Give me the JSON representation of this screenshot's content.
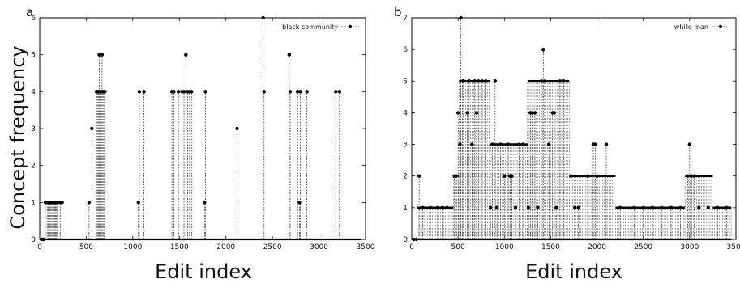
{
  "chart_data": [
    {
      "panel": "a",
      "type": "line",
      "style": "impulse-dots",
      "ylabel": "Concept frequency",
      "xlabel": "Edit index",
      "xlim": [
        0,
        3500
      ],
      "ylim": [
        0,
        6
      ],
      "xticks": [
        0,
        500,
        1000,
        1500,
        2000,
        2500,
        3000,
        3500
      ],
      "yticks": [
        0,
        1,
        2,
        3,
        4,
        5,
        6
      ],
      "legend": "top-right",
      "series": [
        {
          "name": "black community",
          "x": [
            20,
            40,
            60,
            80,
            90,
            100,
            110,
            120,
            130,
            140,
            150,
            160,
            170,
            180,
            190,
            220,
            240,
            530,
            560,
            610,
            620,
            630,
            640,
            650,
            660,
            670,
            680,
            690,
            700,
            1060,
            1070,
            1120,
            1420,
            1440,
            1490,
            1530,
            1550,
            1570,
            1590,
            1610,
            1630,
            1770,
            1780,
            2120,
            2400,
            2410,
            2680,
            2690,
            2770,
            2790,
            2800,
            2870,
            3180,
            3220
          ],
          "y": [
            0,
            0,
            1,
            1,
            1,
            1,
            1,
            1,
            1,
            1,
            1,
            1,
            1,
            1,
            1,
            1,
            1,
            1,
            3,
            4,
            4,
            4,
            5,
            4,
            4,
            5,
            4,
            4,
            4,
            1,
            4,
            4,
            4,
            4,
            4,
            4,
            4,
            5,
            4,
            4,
            4,
            1,
            4,
            3,
            6,
            4,
            5,
            4,
            4,
            1,
            4,
            4,
            4,
            4
          ]
        }
      ]
    },
    {
      "panel": "b",
      "type": "line",
      "style": "impulse-dots",
      "xlabel": "Edit index",
      "xlim": [
        0,
        3500
      ],
      "ylim": [
        0,
        7
      ],
      "xticks": [
        0,
        500,
        1000,
        1500,
        2000,
        2500,
        3000,
        3500
      ],
      "yticks": [
        0,
        1,
        2,
        3,
        4,
        5,
        6,
        7
      ],
      "legend": "top-right",
      "series": [
        {
          "name": "white man",
          "segments": [
            {
              "from": 60,
              "to": 450,
              "y": 1
            },
            {
              "from": 450,
              "to": 510,
              "y": 2
            },
            {
              "from": 510,
              "to": 850,
              "y": 5
            },
            {
              "from": 850,
              "to": 1250,
              "y": 3
            },
            {
              "from": 1250,
              "to": 1700,
              "y": 5
            },
            {
              "from": 1700,
              "to": 2200,
              "y": 2
            },
            {
              "from": 2200,
              "to": 2950,
              "y": 1
            },
            {
              "from": 2950,
              "to": 3250,
              "y": 2
            },
            {
              "from": 3250,
              "to": 3450,
              "y": 1
            }
          ],
          "x": [
            20,
            50,
            80,
            120,
            200,
            280,
            330,
            380,
            460,
            480,
            500,
            520,
            530,
            550,
            560,
            600,
            620,
            650,
            680,
            700,
            720,
            760,
            800,
            850,
            870,
            900,
            920,
            960,
            1000,
            1040,
            1060,
            1080,
            1120,
            1160,
            1200,
            1260,
            1280,
            1300,
            1330,
            1360,
            1400,
            1420,
            1440,
            1480,
            1520,
            1540,
            1560,
            1600,
            1640,
            1720,
            1760,
            1800,
            1900,
            1960,
            1980,
            2000,
            2100,
            2250,
            2400,
            2500,
            2600,
            2700,
            2800,
            2900,
            2980,
            3000,
            3020,
            3050,
            3100,
            3200,
            3300,
            3400
          ],
          "y": [
            0,
            0,
            2,
            1,
            1,
            1,
            1,
            1,
            2,
            2,
            4,
            3,
            7,
            5,
            5,
            4,
            5,
            3,
            5,
            4,
            5,
            5,
            5,
            1,
            3,
            5,
            1,
            3,
            2,
            3,
            2,
            2,
            1,
            3,
            3,
            1,
            4,
            4,
            4,
            1,
            5,
            6,
            5,
            3,
            4,
            4,
            1,
            5,
            5,
            2,
            1,
            1,
            2,
            3,
            3,
            2,
            3,
            1,
            1,
            1,
            1,
            1,
            1,
            1,
            2,
            3,
            2,
            2,
            1,
            1,
            1,
            1
          ]
        }
      ]
    }
  ]
}
